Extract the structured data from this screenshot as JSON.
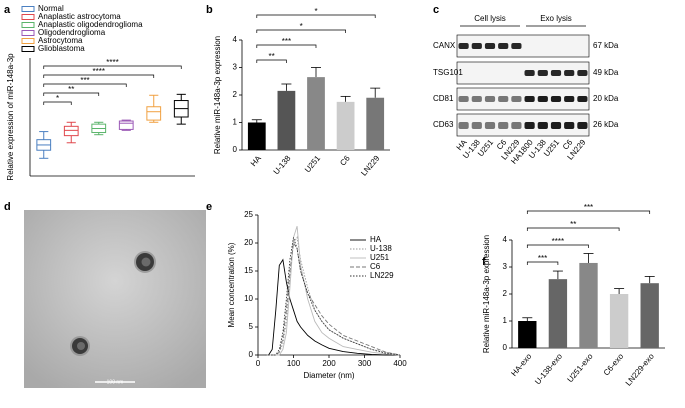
{
  "chart_data": [
    {
      "type": "box",
      "panel": "a",
      "ylabel": "Relative expression of miR-148a-3p",
      "categories": [
        "Normal",
        "Anaplastic astrocytoma",
        "Anaplastic oligodendroglioma",
        "Oligodendroglioma",
        "Astrocytoma",
        "Glioblastoma"
      ],
      "colors": [
        "#4a7fc1",
        "#e0474c",
        "#5ab46a",
        "#9b59b6",
        "#f0a040",
        "#000000"
      ],
      "boxes": [
        {
          "min": 0.57,
          "q1": 0.83,
          "median": 1.0,
          "q3": 1.17,
          "max": 1.43
        },
        {
          "min": 1.07,
          "q1": 1.3,
          "median": 1.47,
          "q3": 1.6,
          "max": 1.73
        },
        {
          "min": 1.33,
          "q1": 1.4,
          "median": 1.53,
          "q3": 1.67,
          "max": 1.73
        },
        {
          "min": 1.47,
          "q1": 1.5,
          "median": 1.7,
          "q3": 1.77,
          "max": 1.8
        },
        {
          "min": 1.73,
          "q1": 1.8,
          "median": 2.07,
          "q3": 2.23,
          "max": 2.6
        },
        {
          "min": 1.67,
          "q1": 1.9,
          "median": 2.17,
          "q3": 2.43,
          "max": 2.63
        }
      ],
      "ylim": [
        0,
        3.8
      ],
      "significance": [
        "*",
        "**",
        "***",
        "****",
        "****"
      ]
    },
    {
      "type": "bar",
      "panel": "b",
      "ylabel": "Relative miR-148a-3p expression",
      "categories": [
        "HA",
        "U-138",
        "U251",
        "C6",
        "LN229"
      ],
      "values": [
        1.0,
        2.15,
        2.65,
        1.75,
        1.9
      ],
      "errors": [
        0.1,
        0.25,
        0.35,
        0.2,
        0.35
      ],
      "colors": [
        "#000000",
        "#555555",
        "#888888",
        "#cccccc",
        "#777777"
      ],
      "ylim": [
        0,
        4
      ],
      "yticks": [
        0,
        1,
        2,
        3,
        4
      ],
      "significance": [
        "**",
        "***",
        "*",
        "*"
      ]
    },
    {
      "type": "line",
      "panel": "e",
      "xlabel": "Diameter (nm)",
      "ylabel": "Mean concentration (%)",
      "x": [
        20,
        30,
        40,
        50,
        60,
        70,
        80,
        90,
        100,
        110,
        120,
        140,
        160,
        180,
        200,
        240,
        280,
        320,
        360,
        400
      ],
      "series": [
        {
          "name": "HA",
          "color": "#000000",
          "dash": "solid",
          "values": [
            0,
            0,
            1,
            8,
            16,
            17,
            13,
            10,
            8,
            6,
            5,
            3.5,
            2.5,
            1.8,
            1.2,
            0.6,
            0.3,
            0.1,
            0,
            0
          ]
        },
        {
          "name": "U-138",
          "color": "#999999",
          "dash": "dotted",
          "values": [
            0,
            0,
            0,
            0,
            0.5,
            2,
            6,
            14,
            20,
            21,
            17,
            12,
            8,
            6,
            4.5,
            3,
            2,
            1,
            0.5,
            0
          ]
        },
        {
          "name": "U251",
          "color": "#bbbbbb",
          "dash": "solid",
          "values": [
            0,
            0,
            0,
            0,
            0,
            1,
            4,
            12,
            21,
            23,
            16,
            10,
            6,
            4,
            3,
            1.5,
            1,
            0.5,
            0.2,
            0
          ]
        },
        {
          "name": "C6",
          "color": "#777777",
          "dash": "dashed",
          "values": [
            0,
            0,
            0,
            0,
            0.5,
            3,
            8,
            15,
            20,
            19,
            15,
            11,
            9,
            7,
            5.5,
            3.5,
            2.5,
            1.5,
            0.5,
            0
          ]
        },
        {
          "name": "LN229",
          "color": "#333333",
          "dash": "dotted",
          "values": [
            0,
            0,
            0,
            0,
            1,
            4,
            10,
            17,
            21,
            19,
            15,
            11,
            8,
            6,
            4.5,
            3,
            2,
            1,
            0.3,
            0
          ]
        }
      ],
      "xlim": [
        0,
        400
      ],
      "xticks": [
        0,
        100,
        200,
        300,
        400
      ],
      "ylim": [
        0,
        25
      ],
      "yticks": [
        0,
        5,
        10,
        15,
        20,
        25
      ]
    },
    {
      "type": "bar",
      "panel": "f",
      "ylabel": "Relative miR-148a-3p expression",
      "categories": [
        "HA-exo",
        "U-138-exo",
        "U251-exo",
        "C6-exo",
        "LN229-exo"
      ],
      "values": [
        1.0,
        2.55,
        3.15,
        2.0,
        2.4
      ],
      "errors": [
        0.12,
        0.3,
        0.35,
        0.2,
        0.25
      ],
      "colors": [
        "#000000",
        "#666666",
        "#888888",
        "#cccccc",
        "#666666"
      ],
      "ylim": [
        0,
        4
      ],
      "yticks": [
        0,
        1,
        2,
        3,
        4
      ],
      "significance": [
        "***",
        "****",
        "**",
        "***"
      ]
    }
  ],
  "blot": {
    "panel": "c",
    "groups": [
      "Cell lysis",
      "Exo lysis"
    ],
    "rows": [
      "CANX",
      "TSG101",
      "CD81",
      "CD63"
    ],
    "sizes": [
      "67 kDa",
      "49 kDa",
      "20 kDa",
      "26 kDa"
    ],
    "lanes": [
      "HA",
      "U-138",
      "U251",
      "C6",
      "LN229",
      "HA1800",
      "U-138",
      "U251",
      "C6",
      "LN229"
    ]
  },
  "micrograph": {
    "panel": "d",
    "scale": "100 nm"
  }
}
